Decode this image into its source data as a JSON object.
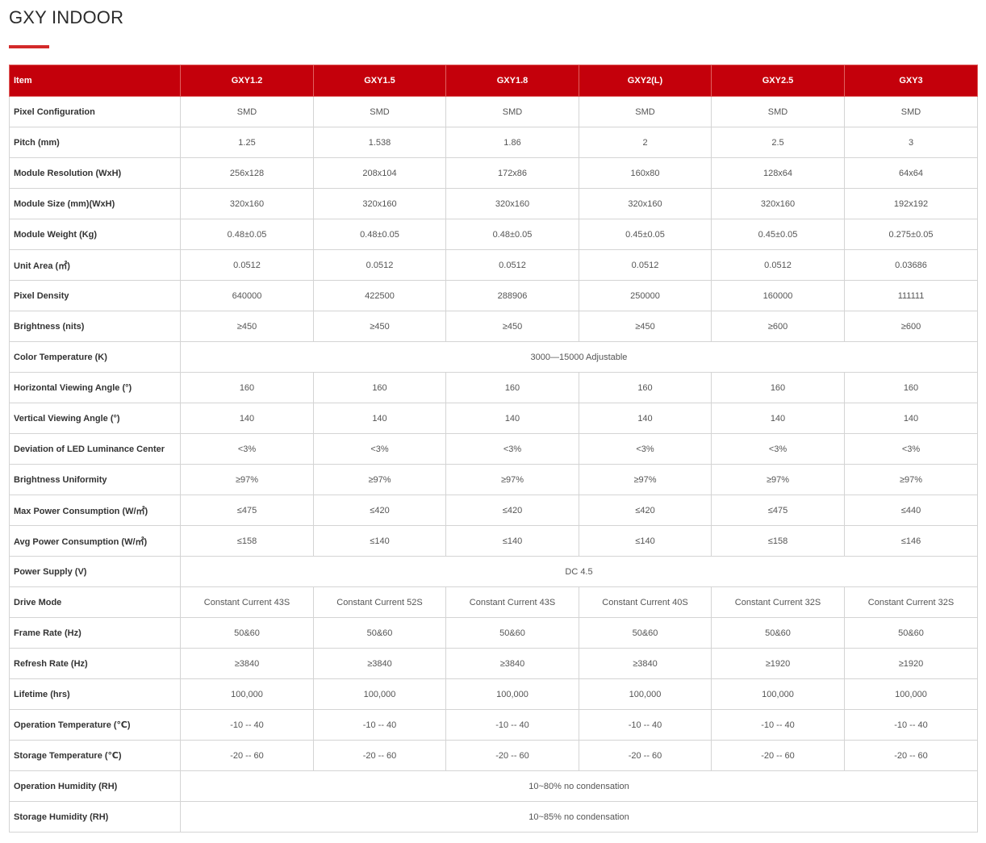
{
  "page": {
    "title": "GXY INDOOR"
  },
  "table": {
    "headers": [
      "Item",
      "GXY1.2",
      "GXY1.5",
      "GXY1.8",
      "GXY2(L)",
      "GXY2.5",
      "GXY3"
    ],
    "rows": [
      {
        "label": "Pixel Configuration",
        "values": [
          "SMD",
          "SMD",
          "SMD",
          "SMD",
          "SMD",
          "SMD"
        ]
      },
      {
        "label": "Pitch (mm)",
        "values": [
          "1.25",
          "1.538",
          "1.86",
          "2",
          "2.5",
          "3"
        ]
      },
      {
        "label": "Module Resolution (WxH)",
        "values": [
          "256x128",
          "208x104",
          "172x86",
          "160x80",
          "128x64",
          "64x64"
        ]
      },
      {
        "label": "Module Size (mm)(WxH)",
        "values": [
          "320x160",
          "320x160",
          "320x160",
          "320x160",
          "320x160",
          "192x192"
        ]
      },
      {
        "label": "Module Weight (Kg)",
        "values": [
          "0.48±0.05",
          "0.48±0.05",
          "0.48±0.05",
          "0.45±0.05",
          "0.45±0.05",
          "0.275±0.05"
        ]
      },
      {
        "label": "Unit Area (㎡)",
        "values": [
          "0.0512",
          "0.0512",
          "0.0512",
          "0.0512",
          "0.0512",
          "0.03686"
        ]
      },
      {
        "label": "Pixel Density",
        "values": [
          "640000",
          "422500",
          "288906",
          "250000",
          "160000",
          "111111"
        ]
      },
      {
        "label": "Brightness (nits)",
        "values": [
          "≥450",
          "≥450",
          "≥450",
          "≥450",
          "≥600",
          "≥600"
        ]
      },
      {
        "label": "Color Temperature (K)",
        "merged": "3000—15000 Adjustable"
      },
      {
        "label": "Horizontal Viewing Angle (°)",
        "values": [
          "160",
          "160",
          "160",
          "160",
          "160",
          "160"
        ]
      },
      {
        "label": "Vertical Viewing Angle (°)",
        "values": [
          "140",
          "140",
          "140",
          "140",
          "140",
          "140"
        ]
      },
      {
        "label": "Deviation of LED Luminance Center",
        "values": [
          "<3%",
          "<3%",
          "<3%",
          "<3%",
          "<3%",
          "<3%"
        ]
      },
      {
        "label": "Brightness Uniformity",
        "values": [
          "≥97%",
          "≥97%",
          "≥97%",
          "≥97%",
          "≥97%",
          "≥97%"
        ]
      },
      {
        "label": "Max Power Consumption (W/㎡)",
        "values": [
          "≤475",
          "≤420",
          "≤420",
          "≤420",
          "≤475",
          "≤440"
        ]
      },
      {
        "label": "Avg Power Consumption (W/㎡)",
        "values": [
          "≤158",
          "≤140",
          "≤140",
          "≤140",
          "≤158",
          "≤146"
        ]
      },
      {
        "label": "Power Supply (V)",
        "merged": "DC 4.5"
      },
      {
        "label": "Drive Mode",
        "values": [
          "Constant Current 43S",
          "Constant Current 52S",
          "Constant Current 43S",
          "Constant Current 40S",
          "Constant Current 32S",
          "Constant Current 32S"
        ]
      },
      {
        "label": "Frame Rate (Hz)",
        "values": [
          "50&60",
          "50&60",
          "50&60",
          "50&60",
          "50&60",
          "50&60"
        ]
      },
      {
        "label": "Refresh Rate (Hz)",
        "values": [
          "≥3840",
          "≥3840",
          "≥3840",
          "≥3840",
          "≥1920",
          "≥1920"
        ]
      },
      {
        "label": "Lifetime (hrs)",
        "values": [
          "100,000",
          "100,000",
          "100,000",
          "100,000",
          "100,000",
          "100,000"
        ]
      },
      {
        "label": "Operation Temperature (℃)",
        "values": [
          "-10 -- 40",
          "-10 -- 40",
          "-10 -- 40",
          "-10 -- 40",
          "-10 -- 40",
          "-10 -- 40"
        ]
      },
      {
        "label": "Storage Temperature (℃)",
        "values": [
          "-20 -- 60",
          "-20 -- 60",
          "-20 -- 60",
          "-20 -- 60",
          "-20 -- 60",
          "-20 -- 60"
        ]
      },
      {
        "label": "Operation Humidity (RH)",
        "merged": "10~80% no condensation"
      },
      {
        "label": "Storage Humidity (RH)",
        "merged": "10~85% no condensation"
      }
    ]
  }
}
